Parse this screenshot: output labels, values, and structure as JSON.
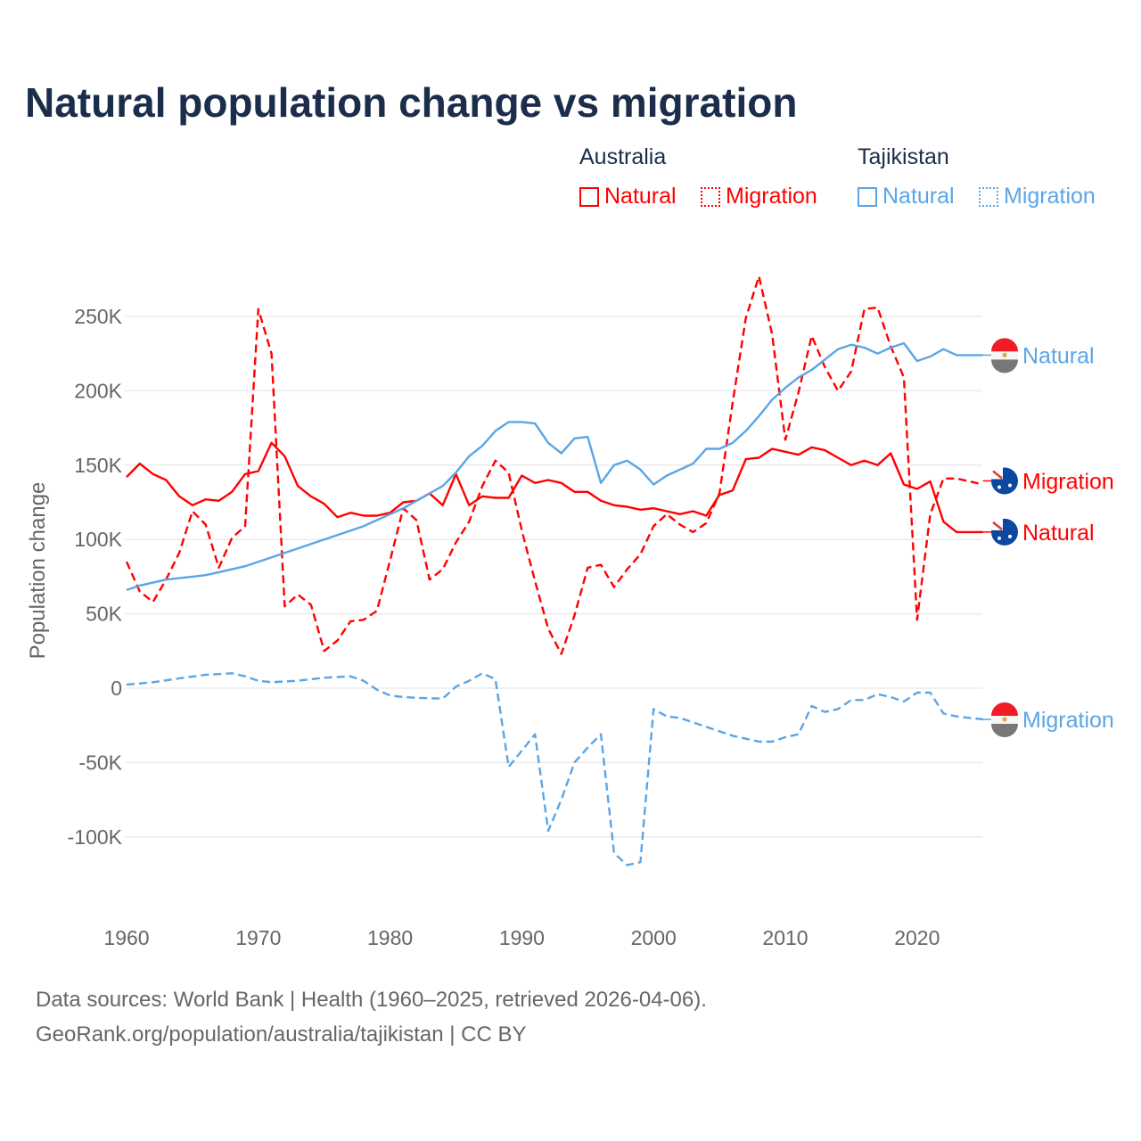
{
  "chart_data": {
    "type": "line",
    "title": "Natural population change vs migration",
    "xlabel": "",
    "ylabel": "Population change",
    "xlim": [
      1960,
      2025
    ],
    "ylim": [
      -130000,
      280000
    ],
    "x_ticks": [
      "1960",
      "1970",
      "1980",
      "1990",
      "2000",
      "2010",
      "2020"
    ],
    "x_tick_values": [
      1960,
      1970,
      1980,
      1990,
      2000,
      2010,
      2020
    ],
    "y_ticks": [
      "-100K",
      "-50K",
      "0",
      "50K",
      "100K",
      "150K",
      "200K",
      "250K"
    ],
    "y_tick_values": [
      -100000,
      -50000,
      0,
      50000,
      100000,
      150000,
      200000,
      250000
    ],
    "grid": true,
    "legend_placement": "top-right",
    "legend_groups": [
      "Australia",
      "Tajikistan"
    ],
    "start_year": 1960,
    "series": [
      {
        "name": "Natural",
        "country": "Australia",
        "color": "#ff0000",
        "style": "solid",
        "values_k": [
          142,
          151,
          144,
          140,
          129,
          123,
          127,
          126,
          132,
          144,
          146,
          165,
          156,
          136,
          129,
          124,
          115,
          118,
          116,
          116,
          118,
          125,
          126,
          131,
          123,
          144,
          123,
          129,
          128,
          128,
          143,
          138,
          140,
          138,
          132,
          132,
          126,
          123,
          122,
          120,
          121,
          119,
          117,
          119,
          116,
          130,
          133,
          154,
          155,
          161,
          159,
          157,
          162,
          160,
          155,
          150,
          153,
          150,
          158,
          137,
          134,
          139,
          112,
          105,
          105,
          105
        ]
      },
      {
        "name": "Migration",
        "country": "Australia",
        "color": "#ff0000",
        "style": "dashed",
        "values_k": [
          85,
          65,
          58,
          73,
          91,
          119,
          110,
          81,
          101,
          109,
          255,
          225,
          55,
          63,
          56,
          25,
          32,
          45,
          46,
          52,
          86,
          121,
          113,
          73,
          80,
          98,
          112,
          136,
          153,
          145,
          106,
          72,
          40,
          23,
          49,
          81,
          83,
          68,
          80,
          90,
          109,
          117,
          110,
          105,
          111,
          131,
          192,
          249,
          277,
          238,
          167,
          199,
          237,
          216,
          200,
          213,
          255,
          256,
          230,
          209,
          46,
          117,
          141,
          141,
          139,
          137
        ]
      },
      {
        "name": "Natural",
        "country": "Tajikistan",
        "color": "#5aa5e6",
        "style": "solid",
        "values_k": [
          66,
          69,
          71,
          73,
          74,
          75,
          76,
          78,
          80,
          82,
          85,
          88,
          91,
          94,
          97,
          100,
          103,
          106,
          109,
          113,
          117,
          121,
          126,
          131,
          136,
          145,
          156,
          163,
          173,
          179,
          179,
          178,
          165,
          158,
          168,
          169,
          138,
          150,
          153,
          147,
          137,
          143,
          147,
          151,
          161,
          161,
          165,
          173,
          183,
          194,
          202,
          209,
          214,
          221,
          228,
          231,
          229,
          225,
          229,
          232,
          220,
          223,
          228,
          224,
          224,
          224
        ]
      },
      {
        "name": "Migration",
        "country": "Tajikistan",
        "color": "#5aa5e6",
        "style": "dashed",
        "values_k": [
          2.4,
          3.2,
          4,
          5.3,
          6.6,
          7.8,
          9,
          9.5,
          10,
          8,
          5,
          4,
          4.5,
          5,
          6,
          7,
          7.5,
          8,
          5,
          -1,
          -5,
          -6,
          -6.5,
          -6.8,
          -7,
          1,
          5,
          10,
          6,
          -53,
          -42,
          -31,
          -96,
          -75,
          -50,
          -40,
          -31,
          -111,
          -119,
          -117,
          -14,
          -19,
          -20,
          -23,
          -26,
          -29,
          -32,
          -34,
          -36,
          -36,
          -33,
          -31,
          -12,
          -16,
          -14,
          -8,
          -8,
          -4,
          -6,
          -9,
          -3,
          -3,
          -17,
          -19,
          -20,
          -21
        ]
      }
    ],
    "end_labels": [
      "Natural",
      "Migration",
      "Natural",
      "Migration"
    ]
  },
  "legend": {
    "australia": "Australia",
    "tajikistan": "Tajikistan",
    "natural": "Natural",
    "migration": "Migration"
  },
  "footer": {
    "line1": "Data sources: World Bank | Health (1960–2025, retrieved 2026-04-06).",
    "line2": "GeoRank.org/population/australia/tajikistan | CC BY"
  },
  "colors": {
    "title": "#1b2d4b",
    "australia": "#ff0000",
    "tajikistan": "#5aa5e6",
    "grid": "#ebebeb",
    "axis_text": "#666666"
  }
}
